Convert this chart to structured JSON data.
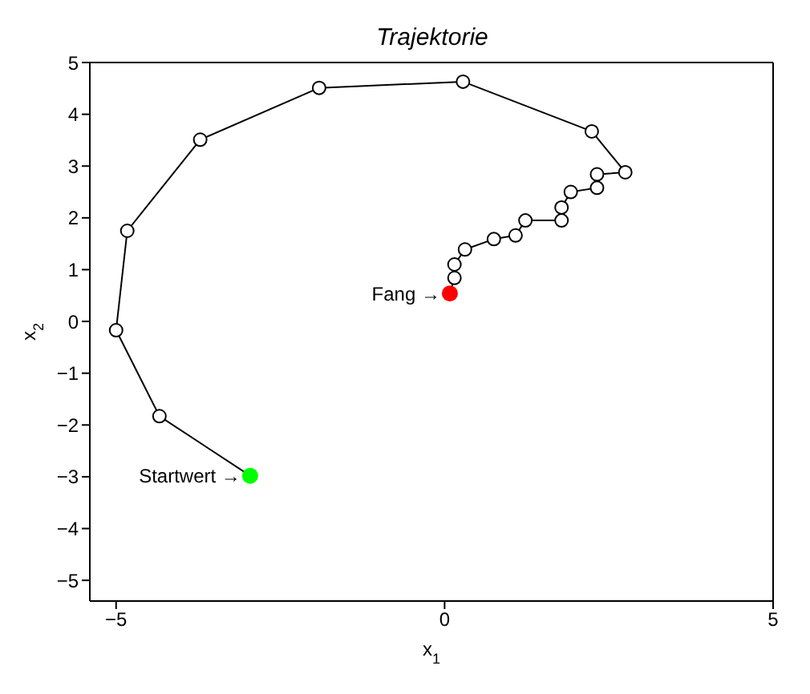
{
  "chart_data": {
    "type": "line",
    "title": "Trajektorie",
    "xlabel": "x$_{1}$",
    "ylabel": "x$_{2}$",
    "xlim": [
      -5.4,
      5
    ],
    "ylim": [
      -5.4,
      5
    ],
    "xticks": [
      -5,
      0,
      5
    ],
    "yticks": [
      -5,
      -4,
      -3,
      -2,
      -1,
      0,
      1,
      2,
      3,
      4,
      5
    ],
    "grid": false,
    "legend": false,
    "series": [
      {
        "color": "#000000",
        "marker": "circle",
        "x": [
          -2.96,
          -4.34,
          -5.0,
          -4.83,
          -3.72,
          -1.91,
          0.28,
          2.24,
          2.75,
          2.32,
          2.32,
          1.92,
          1.78,
          1.78,
          1.23,
          1.08,
          0.75,
          0.31,
          0.15,
          0.15,
          0.08
        ],
        "values": [
          -2.98,
          -1.83,
          -0.17,
          1.75,
          3.51,
          4.51,
          4.63,
          3.67,
          2.88,
          2.84,
          2.58,
          2.5,
          2.2,
          1.95,
          1.95,
          1.66,
          1.59,
          1.39,
          1.1,
          0.84,
          0.54
        ]
      },
      {
        "type": "scatter",
        "color": "#00ff00",
        "x": [
          -2.96
        ],
        "values": [
          -2.98
        ]
      },
      {
        "type": "scatter",
        "color": "#ff0000",
        "x": [
          0.08
        ],
        "values": [
          0.54
        ]
      }
    ],
    "annotations": [
      {
        "text": "Startwert →",
        "x": -2.96,
        "y": -2.98
      },
      {
        "text": "Fang →",
        "x": 0.08,
        "y": 0.54
      }
    ]
  }
}
